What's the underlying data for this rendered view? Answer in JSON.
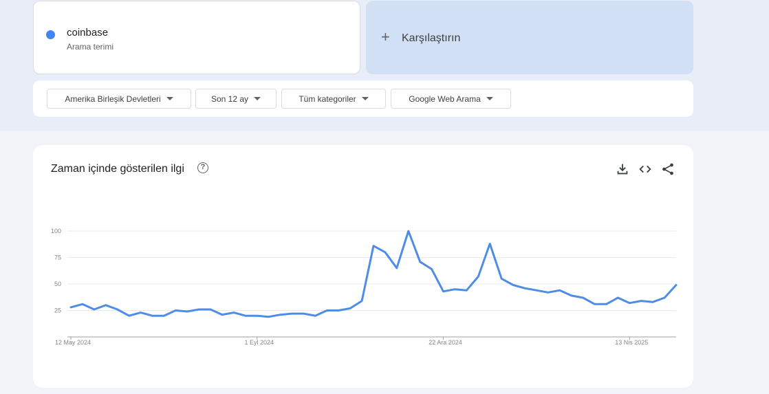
{
  "search_term": {
    "name": "coinbase",
    "subtitle": "Arama terimi",
    "color": "#4285f4"
  },
  "compare": {
    "label": "Karşılaştırın"
  },
  "filters": {
    "region": "Amerika Birleşik Devletleri",
    "period": "Son 12 ay",
    "category": "Tüm kategoriler",
    "source": "Google Web Arama"
  },
  "chart_card": {
    "title": "Zaman içinde gösterilen ilgi",
    "help_icon": "help-circle-icon",
    "tools": [
      "download-icon",
      "embed-code-icon",
      "share-icon"
    ]
  },
  "chart_data": {
    "type": "line",
    "title": "Zaman içinde gösterilen ilgi",
    "xlabel": "",
    "ylabel": "",
    "ylim": [
      0,
      100
    ],
    "yticks": [
      25,
      50,
      75,
      100
    ],
    "grid": true,
    "xtick_labels": [
      {
        "label": "12 May 2024",
        "index": 0
      },
      {
        "label": "1 Eyl 2024",
        "index": 16
      },
      {
        "label": "22 Ara 2024",
        "index": 32
      },
      {
        "label": "13 Nis 2025",
        "index": 48
      }
    ],
    "series": [
      {
        "color": "#4f8ce6",
        "values": [
          28,
          31,
          26,
          30,
          26,
          20,
          23,
          20,
          20,
          25,
          24,
          26,
          26,
          21,
          23,
          20,
          20,
          19,
          21,
          22,
          22,
          20,
          25,
          25,
          27,
          34,
          86,
          80,
          65,
          100,
          71,
          64,
          43,
          45,
          44,
          57,
          88,
          55,
          49,
          46,
          44,
          42,
          44,
          39,
          37,
          31,
          31,
          37,
          32,
          34,
          33,
          37,
          49
        ]
      }
    ]
  }
}
